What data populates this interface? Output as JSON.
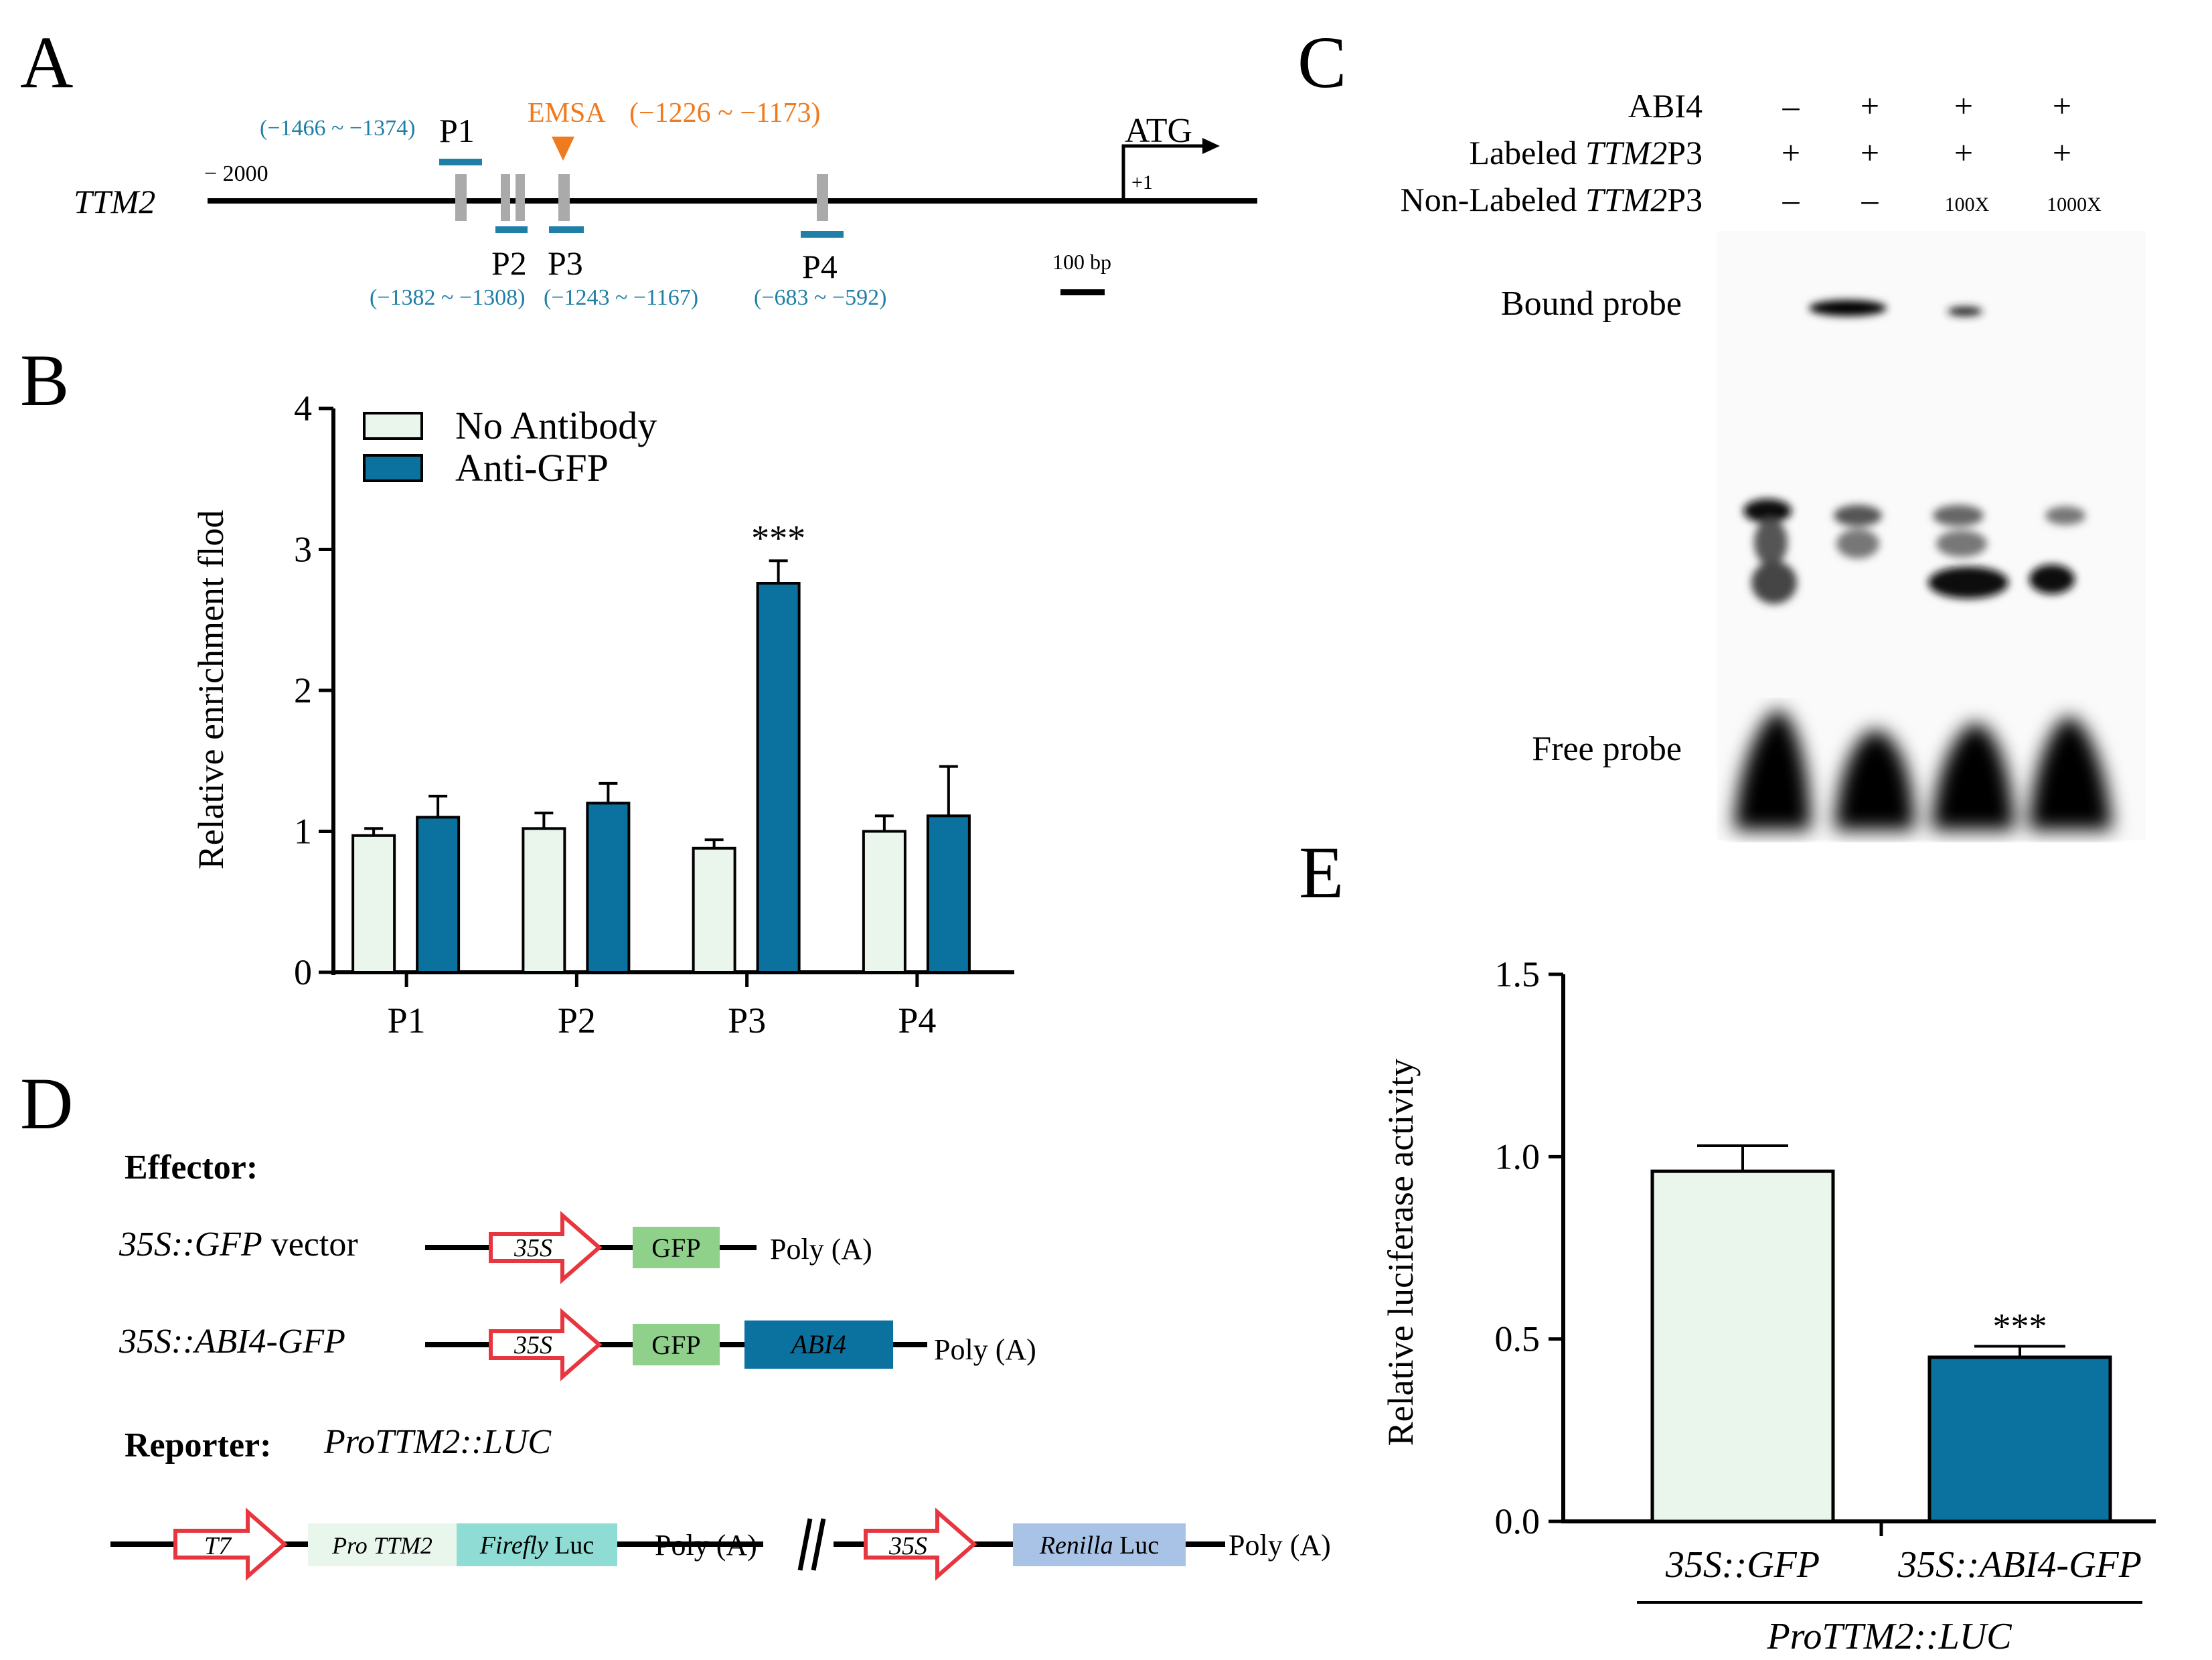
{
  "colors": {
    "light_bar": "#eaf6ec",
    "dark_bar": "#0b72a0",
    "blue_text": "#1f7fa6",
    "orange": "#f07a1e",
    "black": "#000000",
    "red_arrow": "#e8363f",
    "gfp_box": "#8fd08a",
    "abi4_box": "#0b72a0",
    "pro_box": "#e9f6ec",
    "firefly_box": "#8fdcd4",
    "renilla_box": "#a9c3e6",
    "grey_site": "#aaaaaa",
    "gel_bg": "#fafafa"
  },
  "panel_a": {
    "label": "A",
    "gene": "TTM2",
    "start_label": "− 2000",
    "atg_label": "ATG",
    "tss_label": "+1",
    "scale_label": "100 bp",
    "emsa_label": "EMSA",
    "emsa_range": "(−1226 ~ −1173)",
    "primers": [
      {
        "name": "P1",
        "range": "(−1466 ~ −1374)"
      },
      {
        "name": "P2",
        "range": "(−1382 ~ −1308)"
      },
      {
        "name": "P3",
        "range": "(−1243 ~ −1167)"
      },
      {
        "name": "P4",
        "range": "(−683 ~ −592)"
      }
    ]
  },
  "panel_b": {
    "label": "B",
    "chart_data": {
      "type": "bar",
      "categories": [
        "P1",
        "P2",
        "P3",
        "P4"
      ],
      "series": [
        {
          "name": "No Antibody",
          "values": [
            0.97,
            1.02,
            0.88,
            1.0
          ],
          "errors": [
            0.05,
            0.11,
            0.06,
            0.11
          ]
        },
        {
          "name": "Anti-GFP",
          "values": [
            1.1,
            1.2,
            2.76,
            1.11
          ],
          "errors": [
            0.15,
            0.14,
            0.16,
            0.35
          ]
        }
      ],
      "ylabel": "Relative enrichment flod",
      "ylim": [
        0,
        4
      ],
      "yticks": [
        "0",
        "1",
        "2",
        "3",
        "4"
      ],
      "significance": {
        "category": "P3",
        "label": "***"
      },
      "legend_position": "top-left"
    }
  },
  "panel_c": {
    "label": "C",
    "rows": [
      {
        "label": "ABI4",
        "values": [
          "–",
          "+",
          "+",
          "+"
        ]
      },
      {
        "label_prefix": "Labeled ",
        "label_italic": "TTM2",
        "label_suffix": "P3",
        "values": [
          "+",
          "+",
          "+",
          "+"
        ]
      },
      {
        "label_prefix": "Non-Labeled ",
        "label_italic": "TTM2",
        "label_suffix": "P3",
        "values": [
          "–",
          "–",
          "100X",
          "1000X"
        ]
      }
    ],
    "bound_probe": "Bound probe",
    "free_probe": "Free probe"
  },
  "panel_d": {
    "label": "D",
    "effector_title": "Effector:",
    "reporter_title": "Reporter:",
    "reporter_construct": "ProTTM2::LUC",
    "vector1_label_italic": "35S::GFP",
    "vector1_label_rest": " vector",
    "vector2_label": "35S::ABI4-GFP",
    "promoter_35s": "35S",
    "promoter_t7": "T7",
    "gfp": "GFP",
    "abi4": "ABI4",
    "polya": "Poly (A)",
    "pro_ttm2": "Pro TTM2",
    "firefly_italic": "Firefly",
    "renilla_italic": "Renilla",
    "luc": " Luc"
  },
  "panel_e": {
    "label": "E",
    "chart_data": {
      "type": "bar",
      "categories": [
        "35S::GFP",
        "35S::ABI4-GFP"
      ],
      "values": [
        0.96,
        0.45
      ],
      "errors": [
        0.07,
        0.03
      ],
      "ylabel": "Relative luciferase activity",
      "ylim": [
        0,
        1.5
      ],
      "yticks": [
        "0.0",
        "0.5",
        "1.0",
        "1.5"
      ],
      "group_label": "ProTTM2::LUC",
      "significance": {
        "category": "35S::ABI4-GFP",
        "label": "***"
      }
    }
  }
}
